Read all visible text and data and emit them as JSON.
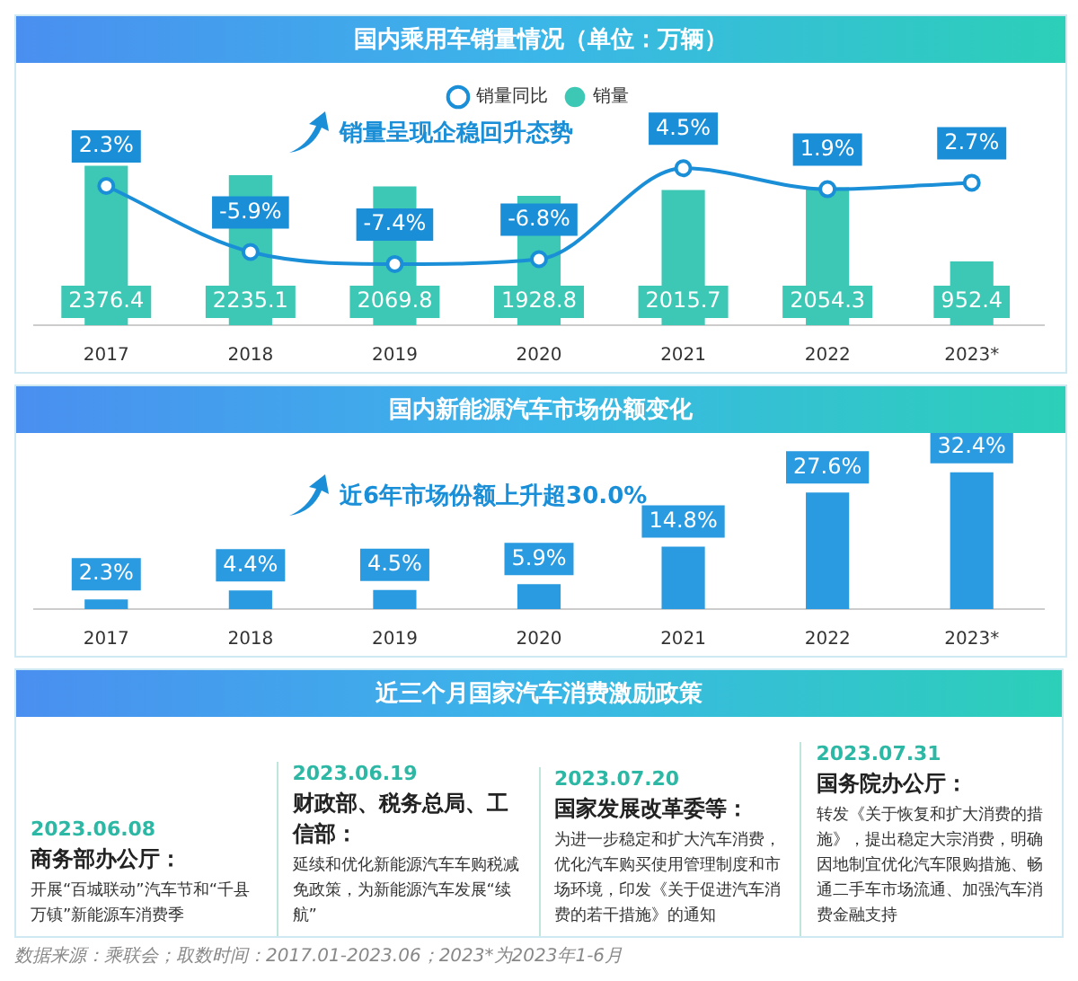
{
  "chart_data": [
    {
      "type": "bar",
      "title": "国内乘用车销量情况（单位：万辆）",
      "categories": [
        "2017",
        "2018",
        "2019",
        "2020",
        "2021",
        "2022",
        "2023*"
      ],
      "series": [
        {
          "name": "销量",
          "color": "#3cc8b4",
          "values": [
            2376.4,
            2235.1,
            2069.8,
            1928.8,
            2015.7,
            2054.3,
            952.4
          ]
        },
        {
          "name": "销量同比",
          "type": "line",
          "axis": "y2",
          "color": "#1a8fd8",
          "values": [
            2.3,
            -5.9,
            -7.4,
            -6.8,
            4.5,
            1.9,
            2.7
          ],
          "value_labels": [
            "2.3%",
            "-5.9%",
            "-7.4%",
            "-6.8%",
            "4.5%",
            "1.9%",
            "2.7%"
          ]
        }
      ],
      "data_labels": true,
      "legend": "top",
      "marker": "circle",
      "tick_labels": "x",
      "annotations": [
        "销量呈现企稳回升态势"
      ]
    },
    {
      "type": "bar",
      "title": "国内新能源汽车市场份额变化",
      "categories": [
        "2017",
        "2018",
        "2019",
        "2020",
        "2021",
        "2022",
        "2023*"
      ],
      "values": [
        2.3,
        4.4,
        4.5,
        5.9,
        14.8,
        27.6,
        32.4
      ],
      "value_labels": [
        "2.3%",
        "4.4%",
        "4.5%",
        "5.9%",
        "14.8%",
        "27.6%",
        "32.4%"
      ],
      "color": "#2a9be0",
      "tick_labels": "x",
      "annotations": [
        "近6年市场份额上升超30.0%"
      ]
    },
    {
      "type": "other",
      "title": "近三个月国家汽车消费激励政策",
      "annotations": [
        "2023.06.08",
        "商务部办公厅：",
        "开展“百城联动”汽车节和“千县万镇”新能源车消费季",
        "2023.06.19",
        "财政部、税务总局、工信部：",
        "延续和优化新能源汽车车购税减免政策，为新能源汽车发展“续航”",
        "2023.07.20",
        "国家发展改革委等：",
        "为进一步稳定和扩大汽车消费，优化汽车购买使用管理制度和市场环境，印发《关于促进汽车消费的若干措施》的通知",
        "2023.07.31",
        "国务院办公厅：",
        "转发《关于恢复和扩大消费的措施》，提出稳定大宗消费，明确因地制宜优化汽车限购措施、畅通二手车市场流通、加强汽车消费金融支持",
        "数据来源：乘联会；取数时间：2017.01-2023.06；2023*为2023年1-6月"
      ]
    }
  ]
}
